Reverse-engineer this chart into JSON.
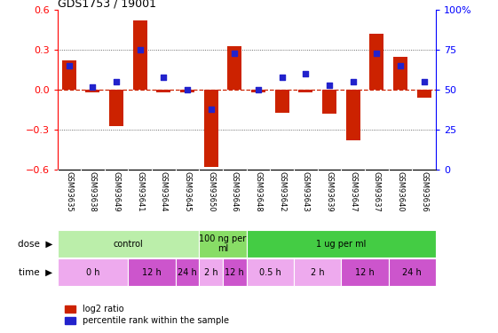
{
  "title": "GDS1753 / 19001",
  "samples": [
    "GSM93635",
    "GSM93638",
    "GSM93649",
    "GSM93641",
    "GSM93644",
    "GSM93645",
    "GSM93650",
    "GSM93646",
    "GSM93648",
    "GSM93642",
    "GSM93643",
    "GSM93639",
    "GSM93647",
    "GSM93637",
    "GSM93640",
    "GSM93636"
  ],
  "log2_ratio": [
    0.22,
    -0.02,
    -0.27,
    0.52,
    -0.02,
    -0.02,
    -0.58,
    0.33,
    -0.02,
    -0.17,
    -0.02,
    -0.18,
    -0.38,
    0.42,
    0.25,
    -0.06
  ],
  "percentile": [
    65,
    52,
    55,
    75,
    58,
    50,
    38,
    73,
    50,
    58,
    60,
    53,
    55,
    73,
    65,
    55
  ],
  "ylim": [
    -0.6,
    0.6
  ],
  "right_ylim": [
    0,
    100
  ],
  "bar_color": "#cc2200",
  "dot_color": "#2222cc",
  "hline_color": "#cc2200",
  "grid_color": "#444444",
  "dose_groups": [
    {
      "label": "control",
      "start": 0,
      "end": 6,
      "color": "#bbeeaa"
    },
    {
      "label": "100 ng per\nml",
      "start": 6,
      "end": 8,
      "color": "#88dd66"
    },
    {
      "label": "1 ug per ml",
      "start": 8,
      "end": 16,
      "color": "#44cc44"
    }
  ],
  "time_groups": [
    {
      "label": "0 h",
      "start": 0,
      "end": 3,
      "color": "#eeaaee"
    },
    {
      "label": "12 h",
      "start": 3,
      "end": 5,
      "color": "#cc55cc"
    },
    {
      "label": "24 h",
      "start": 5,
      "end": 6,
      "color": "#cc55cc"
    },
    {
      "label": "2 h",
      "start": 6,
      "end": 7,
      "color": "#eeaaee"
    },
    {
      "label": "12 h",
      "start": 7,
      "end": 8,
      "color": "#cc55cc"
    },
    {
      "label": "0.5 h",
      "start": 8,
      "end": 10,
      "color": "#eeaaee"
    },
    {
      "label": "2 h",
      "start": 10,
      "end": 12,
      "color": "#eeaaee"
    },
    {
      "label": "12 h",
      "start": 12,
      "end": 14,
      "color": "#cc55cc"
    },
    {
      "label": "24 h",
      "start": 14,
      "end": 16,
      "color": "#cc55cc"
    }
  ],
  "legend_red": "log2 ratio",
  "legend_blue": "percentile rank within the sample",
  "background_color": "#ffffff",
  "sample_fontsize": 6.0,
  "bar_width": 0.6
}
